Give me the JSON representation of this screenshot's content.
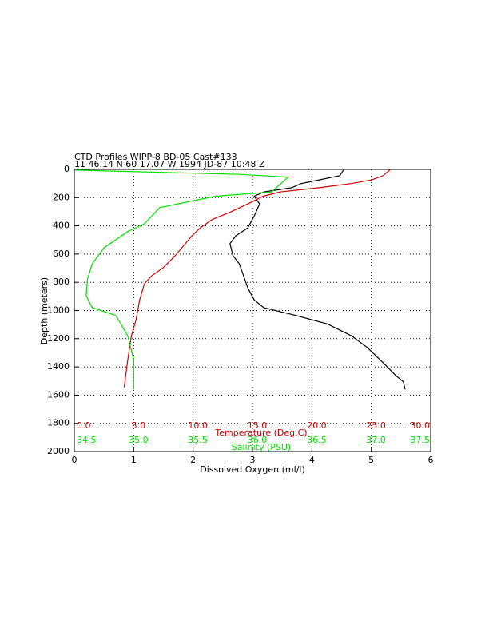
{
  "chart_data": {
    "type": "line",
    "title": "CTD Profiles WIPP-8 BD-05 Cast#133",
    "subtitle": "11 46.14 N  60 17.07 W  1994 JD-87 10:48 Z",
    "xlabel": "Dissolved Oxygen (ml/l)",
    "ylabel": "Depth (meters)",
    "xlim": [
      0,
      6
    ],
    "xticks": [
      0,
      1,
      2,
      3,
      4,
      5,
      6
    ],
    "ylim": [
      0,
      2000
    ],
    "yticks": [
      0,
      200,
      400,
      600,
      800,
      1000,
      1200,
      1400,
      1600,
      1800,
      2000
    ],
    "y_inverted": true,
    "grid": true,
    "x2lim": [
      0,
      30
    ],
    "x2color": "#d00000",
    "x2ticks": [
      {
        "value": 0,
        "label": "0.0"
      },
      {
        "value": 5,
        "label": "5.0"
      },
      {
        "value": 10,
        "label": "10.0"
      },
      {
        "value": 15,
        "label": "15.0"
      },
      {
        "value": 20,
        "label": "20.0"
      },
      {
        "value": 25,
        "label": "25.0"
      },
      {
        "value": 30,
        "label": "30.0"
      }
    ],
    "x3lim": [
      34.5,
      37.5
    ],
    "x3color": "#00e000",
    "x3ticks": [
      34.5,
      {
        "value": 35,
        "label": "35.0"
      },
      35.5,
      {
        "value": 36,
        "label": "36.0"
      },
      36.5,
      {
        "value": 37,
        "label": "37.0"
      },
      37.5
    ],
    "series": [
      {
        "color": "#000000",
        "values": [
          4.53,
          4.47,
          3.82,
          3.66,
          3.19,
          3.03,
          3.12,
          3.03,
          2.92,
          2.72,
          2.62,
          2.67,
          2.78,
          2.85,
          2.92,
          3.03,
          3.19,
          3.73,
          4.26,
          4.67,
          4.94,
          5.21,
          5.41,
          5.54,
          5.57
        ],
        "depth": [
          5,
          45,
          100,
          130,
          160,
          190,
          245,
          330,
          415,
          470,
          525,
          610,
          670,
          755,
          840,
          925,
          980,
          1035,
          1095,
          1180,
          1265,
          1375,
          1460,
          1505,
          1560
        ]
      },
      {
        "name": "Temperature (Deg.C)",
        "color": "#d00000",
        "axis": "x2",
        "values": [
          26.6,
          26.0,
          25.0,
          23.3,
          20.6,
          17.3,
          15.9,
          14.6,
          13.2,
          11.6,
          10.6,
          9.9,
          8.5,
          7.5,
          6.5,
          5.9,
          5.5,
          5.2,
          4.8,
          4.5,
          4.2
        ],
        "depth": [
          0,
          45,
          75,
          100,
          130,
          160,
          190,
          245,
          300,
          355,
          415,
          470,
          610,
          695,
          755,
          810,
          925,
          1065,
          1180,
          1350,
          1545
        ]
      },
      {
        "name": "Salinity (PSU)",
        "color": "#00e000",
        "axis": "x3",
        "values": [
          34.51,
          35.89,
          36.3,
          36.16,
          35.69,
          35.22,
          35.09,
          34.95,
          34.75,
          34.65,
          34.61,
          34.6,
          34.65,
          34.85,
          34.95,
          35.0,
          35.0
        ],
        "depth": [
          5,
          35,
          55,
          160,
          190,
          270,
          385,
          440,
          555,
          670,
          780,
          895,
          980,
          1035,
          1180,
          1350,
          1560
        ]
      }
    ]
  }
}
